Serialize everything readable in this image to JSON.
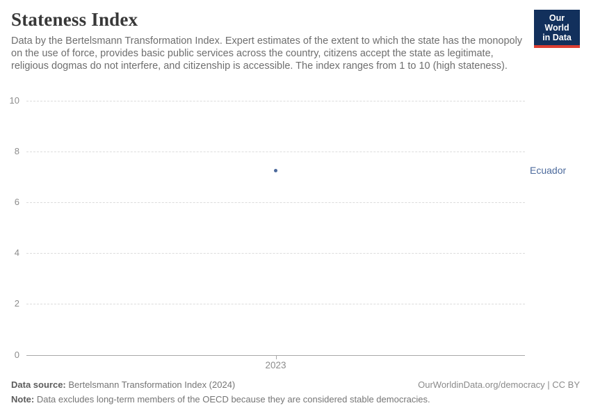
{
  "header": {
    "title": "Stateness Index",
    "subtitle": "Data by the Bertelsmann Transformation Index. Expert estimates of the extent to which the state has the monopoly on the use of force, provides basic public services across the country, citizens accept the state as legitimate, religious dogmas do not interfere, and citizenship is accessible. The index ranges from 1 to 10 (high stateness).",
    "logo": {
      "line1": "Our World",
      "line2": "in Data",
      "bg_color": "#12305c",
      "accent_color": "#dc3e32"
    }
  },
  "chart_data": {
    "type": "scatter",
    "title": "Stateness Index",
    "x": [
      2023
    ],
    "xticks": [
      "2023"
    ],
    "series": [
      {
        "name": "Ecuador",
        "values": [
          7.25
        ],
        "color": "#4c6a9c"
      }
    ],
    "ylim": [
      0,
      10
    ],
    "yticks": [
      0,
      2,
      4,
      6,
      8,
      10
    ],
    "grid": "horizontal-dashed",
    "legend_position": "right-entity-label",
    "colors": {
      "gridline": "#dcdcdc",
      "axis": "#a8a8a8",
      "tick_label": "#8c8c8c"
    }
  },
  "footer": {
    "source_label": "Data source:",
    "source_text": " Bertelsmann Transformation Index (2024)",
    "note_label": "Note:",
    "note_text": " Data excludes long-term members of the OECD because they are considered stable democracies.",
    "link_text": "OurWorldinData.org/democracy | CC BY"
  }
}
